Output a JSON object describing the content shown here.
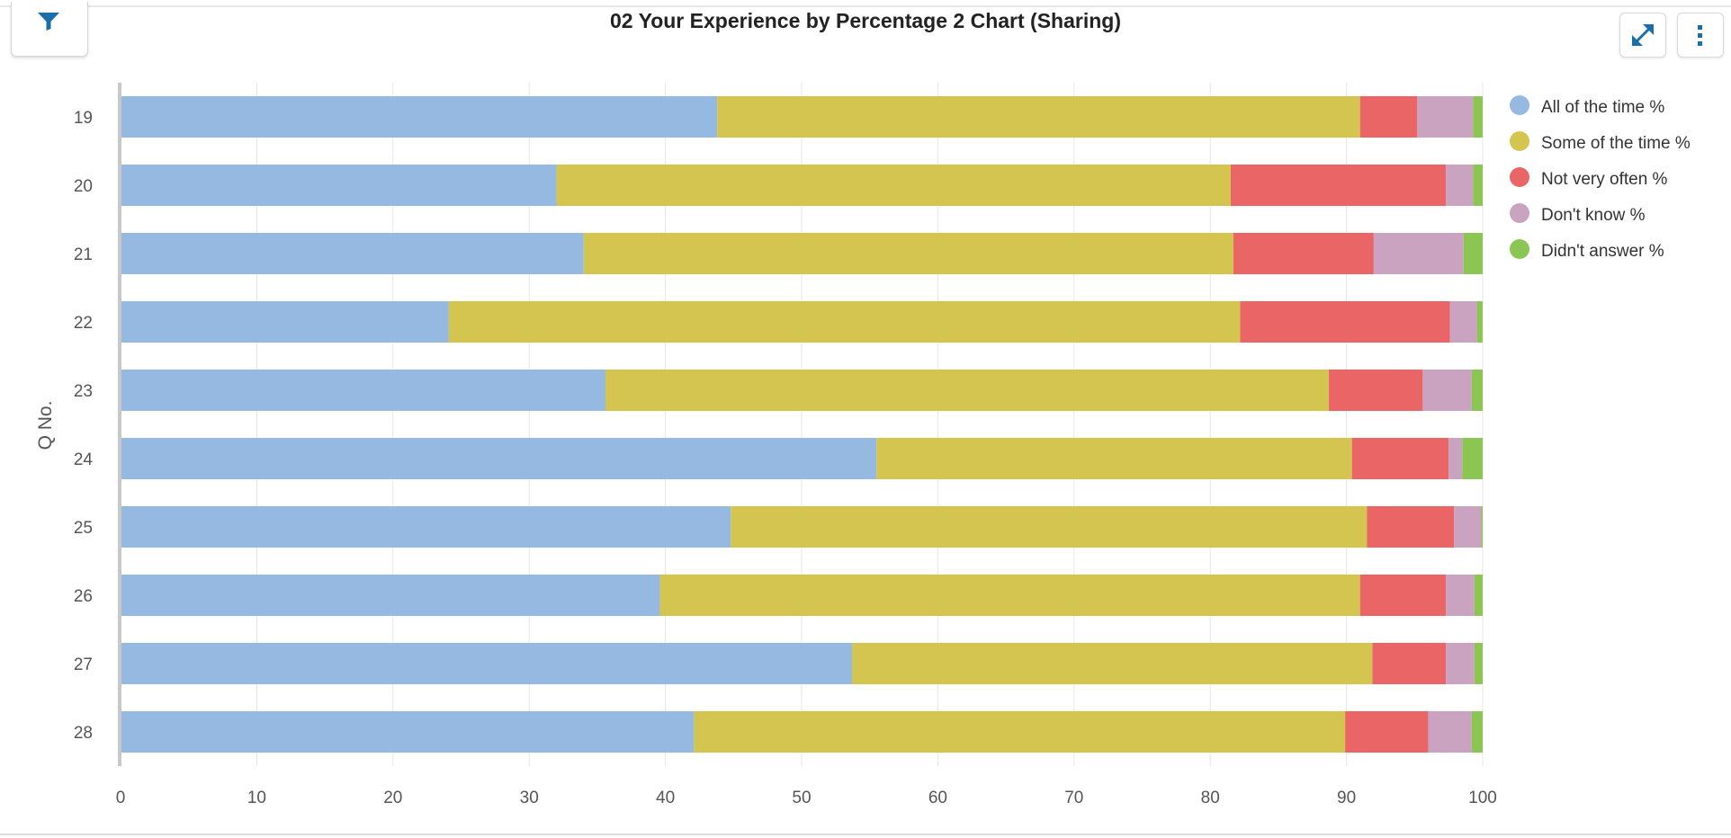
{
  "header": {
    "title": "02 Your Experience by Percentage 2 Chart (Sharing)",
    "filter_icon": "filter-icon",
    "expand_icon": "expand-icon",
    "menu_icon": "vertical-dots-icon",
    "accent_color": "#1a6fa8"
  },
  "chart_data": {
    "type": "bar",
    "orientation": "horizontal",
    "stacked": true,
    "title": "02 Your Experience by Percentage 2 Chart (Sharing)",
    "ylabel": "Q No.",
    "xlabel": "",
    "xlim": [
      0,
      100
    ],
    "xticks": [
      0,
      10,
      20,
      30,
      40,
      50,
      60,
      70,
      80,
      90,
      100
    ],
    "grid": true,
    "legend_position": "right",
    "categories": [
      "19",
      "20",
      "21",
      "22",
      "23",
      "24",
      "25",
      "26",
      "27",
      "28"
    ],
    "series": [
      {
        "name": "All of the time %",
        "color": "#95b9e1",
        "values": [
          43.8,
          32.0,
          34.0,
          24.1,
          35.6,
          55.5,
          44.8,
          39.6,
          53.7,
          42.1
        ]
      },
      {
        "name": "Some of the time %",
        "color": "#d4c450",
        "values": [
          47.2,
          49.5,
          47.7,
          58.1,
          53.1,
          34.9,
          46.7,
          51.4,
          38.2,
          47.8
        ]
      },
      {
        "name": "Not very often %",
        "color": "#e96566",
        "values": [
          4.2,
          15.8,
          10.3,
          15.4,
          6.9,
          7.1,
          6.4,
          6.3,
          5.4,
          6.1
        ]
      },
      {
        "name": "Don't know %",
        "color": "#c9a3bf",
        "values": [
          4.1,
          2.0,
          6.6,
          2.0,
          3.6,
          1.0,
          2.0,
          2.1,
          2.1,
          3.2
        ]
      },
      {
        "name": "Didn't answer %",
        "color": "#8cc652",
        "values": [
          0.7,
          0.7,
          1.4,
          0.4,
          0.8,
          1.5,
          0.1,
          0.6,
          0.6,
          0.8
        ]
      }
    ]
  }
}
